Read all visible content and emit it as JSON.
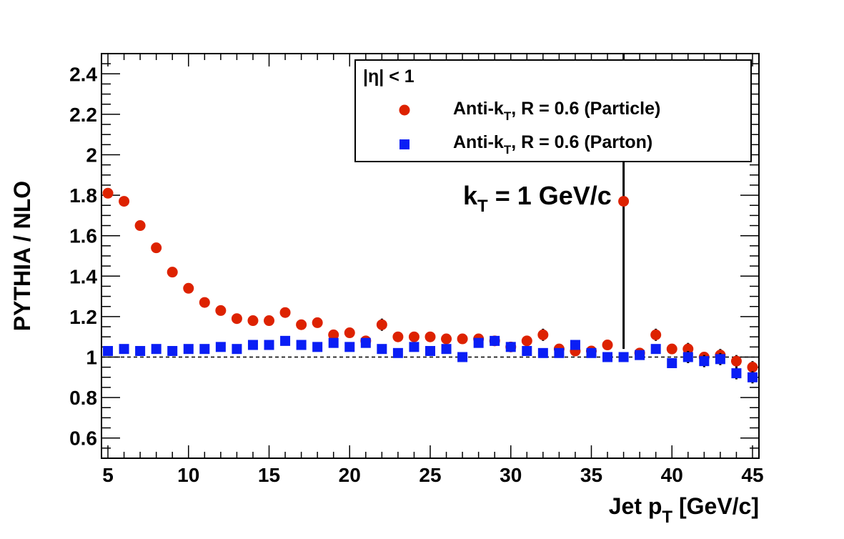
{
  "chart_data": {
    "type": "scatter",
    "xlabel": "Jet p",
    "xlabel_sub": "T",
    "xlabel_suffix": " [GeV/c]",
    "ylabel": "PYTHIA / NLO",
    "xlim": [
      4.6,
      45.4
    ],
    "ylim": [
      0.5,
      2.5
    ],
    "xticks": [
      5,
      10,
      15,
      20,
      25,
      30,
      35,
      40,
      45
    ],
    "yticks": [
      0.6,
      0.8,
      1,
      1.2,
      1.4,
      1.6,
      1.8,
      2,
      2.2,
      2.4
    ],
    "ytick_labels": [
      "0.6",
      "0.8",
      "1",
      "1.2",
      "1.4",
      "1.6",
      "1.8",
      "2",
      "2.2",
      "2.4"
    ],
    "reference_line": 1.0,
    "legend": {
      "header": "|η| < 1",
      "placement": "top-right"
    },
    "annotation": {
      "main": "k",
      "sub": "T",
      "suffix": " = 1 GeV/c"
    },
    "series": [
      {
        "name_main": "Anti-k",
        "name_sub": "T",
        "name_suffix": ", R = 0.6 (Particle)",
        "color": "#dd2200",
        "marker": "circle",
        "x": [
          5,
          6,
          7,
          8,
          9,
          10,
          11,
          12,
          13,
          14,
          15,
          16,
          17,
          18,
          19,
          20,
          21,
          22,
          23,
          24,
          25,
          26,
          27,
          28,
          29,
          30,
          31,
          32,
          33,
          34,
          35,
          36,
          37,
          38,
          39,
          40,
          41,
          42,
          43,
          44,
          45
        ],
        "y": [
          1.81,
          1.77,
          1.65,
          1.54,
          1.42,
          1.34,
          1.27,
          1.23,
          1.19,
          1.18,
          1.18,
          1.22,
          1.16,
          1.17,
          1.11,
          1.12,
          1.08,
          1.16,
          1.1,
          1.1,
          1.1,
          1.09,
          1.09,
          1.09,
          1.08,
          1.05,
          1.08,
          1.11,
          1.04,
          1.03,
          1.03,
          1.06,
          1.77,
          1.02,
          1.11,
          1.04,
          1.04,
          1.0,
          1.01,
          0.98,
          0.95
        ],
        "err": [
          0.005,
          0.005,
          0.005,
          0.005,
          0.005,
          0.005,
          0.005,
          0.005,
          0.005,
          0.005,
          0.005,
          0.005,
          0.005,
          0.005,
          0.005,
          0.005,
          0.01,
          0.03,
          0.01,
          0.01,
          0.01,
          0.01,
          0.01,
          0.01,
          0.01,
          0.01,
          0.02,
          0.03,
          0.02,
          0.02,
          0.02,
          0.02,
          0.73,
          0.02,
          0.03,
          0.02,
          0.03,
          0.02,
          0.03,
          0.03,
          0.03
        ]
      },
      {
        "name_main": "Anti-k",
        "name_sub": "T",
        "name_suffix": ", R = 0.6 (Parton)",
        "color": "#0a1ef5",
        "marker": "square",
        "x": [
          5,
          6,
          7,
          8,
          9,
          10,
          11,
          12,
          13,
          14,
          15,
          16,
          17,
          18,
          19,
          20,
          21,
          22,
          23,
          24,
          25,
          26,
          27,
          28,
          29,
          30,
          31,
          32,
          33,
          34,
          35,
          36,
          37,
          38,
          39,
          40,
          41,
          42,
          43,
          44,
          45
        ],
        "y": [
          1.03,
          1.04,
          1.03,
          1.04,
          1.03,
          1.04,
          1.04,
          1.05,
          1.04,
          1.06,
          1.06,
          1.08,
          1.06,
          1.05,
          1.07,
          1.05,
          1.07,
          1.04,
          1.02,
          1.05,
          1.03,
          1.04,
          1.0,
          1.07,
          1.08,
          1.05,
          1.03,
          1.02,
          1.02,
          1.06,
          1.02,
          1.0,
          1.0,
          1.01,
          1.04,
          0.97,
          1.0,
          0.98,
          0.99,
          0.92,
          0.9
        ],
        "err": [
          0.005,
          0.005,
          0.005,
          0.005,
          0.005,
          0.005,
          0.005,
          0.005,
          0.005,
          0.005,
          0.005,
          0.005,
          0.005,
          0.005,
          0.005,
          0.005,
          0.005,
          0.01,
          0.01,
          0.01,
          0.01,
          0.01,
          0.01,
          0.01,
          0.02,
          0.02,
          0.02,
          0.02,
          0.02,
          0.02,
          0.02,
          0.02,
          0.02,
          0.02,
          0.02,
          0.02,
          0.03,
          0.03,
          0.03,
          0.03,
          0.03
        ]
      }
    ]
  }
}
